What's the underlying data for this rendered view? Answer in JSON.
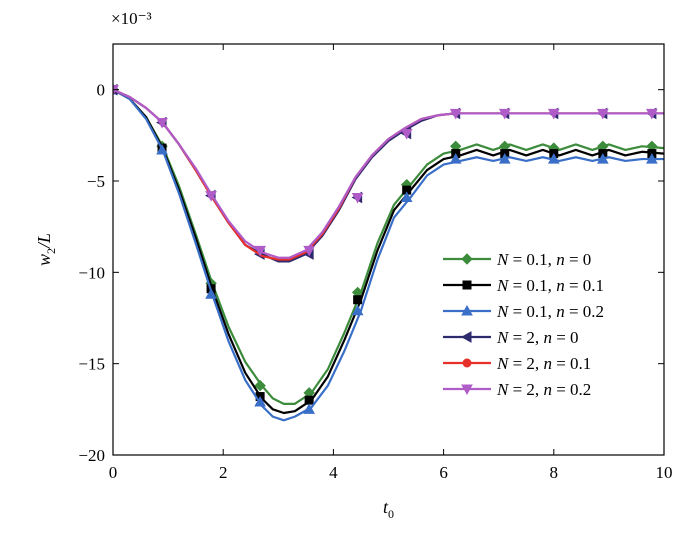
{
  "chart_data": {
    "type": "line",
    "title": "",
    "xlabel": "t₀",
    "ylabel": "w₂/L",
    "y_multiplier": "×10⁻³",
    "xlim": [
      0,
      10
    ],
    "ylim": [
      -20,
      2.5
    ],
    "xticks": [
      0,
      2,
      4,
      6,
      8,
      10
    ],
    "xtick_labels": [
      "0",
      "2",
      "4",
      "6",
      "8",
      "10"
    ],
    "yticks": [
      0,
      -5,
      -10,
      -15,
      -20
    ],
    "ytick_labels": [
      "0",
      "−5",
      "−10",
      "−15",
      "−20"
    ],
    "grid": false,
    "legend_position": "center-right",
    "series": [
      {
        "name": "N = 0.1, n = 0",
        "legend_parts": [
          [
            "N",
            true
          ],
          [
            " = 0.1, ",
            false
          ],
          [
            "n",
            true
          ],
          [
            " = 0",
            false
          ]
        ],
        "color": "#3c8c3c",
        "marker": "diamond",
        "x": [
          0,
          0.3,
          0.6,
          0.9,
          1.2,
          1.5,
          1.8,
          2.1,
          2.4,
          2.7,
          2.9,
          3.1,
          3.3,
          3.6,
          3.9,
          4.2,
          4.5,
          4.8,
          5.1,
          5.4,
          5.7,
          6.0,
          6.3,
          6.6,
          6.9,
          7.2,
          7.5,
          7.8,
          8.1,
          8.4,
          8.7,
          9.0,
          9.3,
          9.6,
          10.0
        ],
        "y": [
          0,
          -0.5,
          -1.5,
          -3.1,
          -5.3,
          -7.9,
          -10.6,
          -13.0,
          -14.9,
          -16.2,
          -16.9,
          -17.2,
          -17.2,
          -16.6,
          -15.3,
          -13.3,
          -11.1,
          -8.4,
          -6.3,
          -5.2,
          -4.1,
          -3.5,
          -3.3,
          -3.0,
          -3.3,
          -3.0,
          -3.3,
          -3.0,
          -3.3,
          -3.0,
          -3.3,
          -3.0,
          -3.3,
          -3.1,
          -3.2
        ],
        "marker_x": [
          0,
          0.89,
          1.78,
          2.67,
          3.56,
          4.44,
          5.33,
          6.22,
          7.11,
          8.0,
          8.89,
          9.78
        ],
        "marker_y": [
          0,
          -3.1,
          -10.6,
          -16.2,
          -16.6,
          -11.1,
          -5.2,
          -3.1,
          -3.1,
          -3.2,
          -3.1,
          -3.1
        ]
      },
      {
        "name": "N = 0.1, n = 0.1",
        "legend_parts": [
          [
            "N",
            true
          ],
          [
            " = 0.1, ",
            false
          ],
          [
            "n",
            true
          ],
          [
            " = 0.1",
            false
          ]
        ],
        "color": "#000000",
        "marker": "square",
        "x": [
          0,
          0.3,
          0.6,
          0.9,
          1.2,
          1.5,
          1.8,
          2.1,
          2.4,
          2.7,
          2.9,
          3.1,
          3.3,
          3.6,
          3.9,
          4.2,
          4.5,
          4.8,
          5.1,
          5.4,
          5.7,
          6.0,
          6.3,
          6.6,
          6.9,
          7.2,
          7.5,
          7.8,
          8.1,
          8.4,
          8.7,
          9.0,
          9.3,
          9.6,
          10.0
        ],
        "y": [
          0,
          -0.5,
          -1.5,
          -3.2,
          -5.5,
          -8.1,
          -10.9,
          -13.4,
          -15.5,
          -16.9,
          -17.5,
          -17.7,
          -17.6,
          -17.0,
          -15.7,
          -13.7,
          -11.5,
          -8.8,
          -6.6,
          -5.5,
          -4.4,
          -3.8,
          -3.6,
          -3.3,
          -3.6,
          -3.3,
          -3.6,
          -3.3,
          -3.6,
          -3.3,
          -3.6,
          -3.3,
          -3.6,
          -3.4,
          -3.5
        ],
        "marker_x": [
          0,
          0.89,
          1.78,
          2.67,
          3.56,
          4.44,
          5.33,
          6.22,
          7.11,
          8.0,
          8.89,
          9.78
        ],
        "marker_y": [
          0,
          -3.2,
          -10.9,
          -16.8,
          -17.0,
          -11.5,
          -5.5,
          -3.5,
          -3.5,
          -3.5,
          -3.5,
          -3.5
        ]
      },
      {
        "name": "N = 0.1, n = 0.2",
        "legend_parts": [
          [
            "N",
            true
          ],
          [
            " = 0.1, ",
            false
          ],
          [
            "n",
            true
          ],
          [
            " = 0.2",
            false
          ]
        ],
        "color": "#3a6fc8",
        "marker": "triangle-up",
        "x": [
          0,
          0.3,
          0.6,
          0.9,
          1.2,
          1.5,
          1.8,
          2.1,
          2.4,
          2.7,
          2.9,
          3.1,
          3.3,
          3.6,
          3.9,
          4.2,
          4.5,
          4.8,
          5.1,
          5.4,
          5.7,
          6.0,
          6.3,
          6.6,
          6.9,
          7.2,
          7.5,
          7.8,
          8.1,
          8.4,
          8.7,
          9.0,
          9.3,
          9.6,
          10.0
        ],
        "y": [
          0,
          -0.5,
          -1.6,
          -3.3,
          -5.7,
          -8.4,
          -11.2,
          -13.8,
          -15.9,
          -17.3,
          -17.9,
          -18.1,
          -17.9,
          -17.4,
          -16.2,
          -14.3,
          -12.1,
          -9.3,
          -7.0,
          -5.9,
          -4.7,
          -4.1,
          -3.9,
          -3.7,
          -3.9,
          -3.7,
          -3.9,
          -3.7,
          -3.9,
          -3.7,
          -3.9,
          -3.7,
          -3.9,
          -3.8,
          -3.8
        ],
        "marker_x": [
          0,
          0.89,
          1.78,
          2.67,
          3.56,
          4.44,
          5.33,
          6.22,
          7.11,
          8.0,
          8.89,
          9.78
        ],
        "marker_y": [
          0,
          -3.3,
          -11.2,
          -17.1,
          -17.5,
          -12.1,
          -5.9,
          -3.8,
          -3.8,
          -3.8,
          -3.8,
          -3.8
        ]
      },
      {
        "name": "N = 2, n = 0",
        "legend_parts": [
          [
            "N",
            true
          ],
          [
            " = 2, ",
            false
          ],
          [
            "n",
            true
          ],
          [
            " = 0",
            false
          ]
        ],
        "color": "#2e2a6e",
        "marker": "triangle-left",
        "x": [
          0,
          0.3,
          0.6,
          0.9,
          1.2,
          1.5,
          1.8,
          2.1,
          2.4,
          2.7,
          3.0,
          3.2,
          3.5,
          3.8,
          4.1,
          4.4,
          4.7,
          5.0,
          5.3,
          5.6,
          5.9,
          6.2,
          6.5,
          7.0,
          7.5,
          8.0,
          8.5,
          9.0,
          9.5,
          10.0
        ],
        "y": [
          0,
          -0.4,
          -1.0,
          -1.8,
          -3.0,
          -4.4,
          -5.9,
          -7.3,
          -8.5,
          -9.0,
          -9.4,
          -9.4,
          -9.0,
          -8.0,
          -6.6,
          -4.9,
          -3.7,
          -2.8,
          -2.2,
          -1.7,
          -1.4,
          -1.3,
          -1.3,
          -1.3,
          -1.3,
          -1.3,
          -1.3,
          -1.3,
          -1.3,
          -1.3
        ],
        "marker_x": [
          0,
          0.89,
          1.78,
          2.67,
          3.56,
          4.44,
          5.33,
          6.22,
          7.11,
          8.0,
          8.89,
          9.78
        ],
        "marker_y": [
          0,
          -1.8,
          -5.8,
          -9.0,
          -9.0,
          -5.9,
          -2.4,
          -1.3,
          -1.3,
          -1.3,
          -1.3,
          -1.3
        ]
      },
      {
        "name": "N = 2, n = 0.1",
        "legend_parts": [
          [
            "N",
            true
          ],
          [
            " = 2, ",
            false
          ],
          [
            "n",
            true
          ],
          [
            " = 0.1",
            false
          ]
        ],
        "color": "#e8302a",
        "marker": "circle",
        "x": [
          0,
          0.3,
          0.6,
          0.9,
          1.2,
          1.5,
          1.8,
          2.1,
          2.4,
          2.7,
          3.0,
          3.2,
          3.5,
          3.8,
          4.1,
          4.4,
          4.7,
          5.0,
          5.3,
          5.6,
          5.9,
          6.2,
          6.5,
          7.0,
          7.5,
          8.0,
          8.5,
          9.0,
          9.5,
          10.0
        ],
        "y": [
          0,
          -0.4,
          -1.0,
          -1.8,
          -3.0,
          -4.4,
          -5.9,
          -7.3,
          -8.5,
          -9.1,
          -9.3,
          -9.3,
          -8.9,
          -7.9,
          -6.5,
          -4.8,
          -3.6,
          -2.7,
          -2.1,
          -1.6,
          -1.4,
          -1.3,
          -1.3,
          -1.3,
          -1.3,
          -1.3,
          -1.3,
          -1.3,
          -1.3,
          -1.3
        ],
        "marker_x": [],
        "marker_y": []
      },
      {
        "name": "N = 2, n = 0.2",
        "legend_parts": [
          [
            "N",
            true
          ],
          [
            " = 2, ",
            false
          ],
          [
            "n",
            true
          ],
          [
            " = 0.2",
            false
          ]
        ],
        "color": "#b05cc8",
        "marker": "triangle-down",
        "x": [
          0,
          0.3,
          0.6,
          0.9,
          1.2,
          1.5,
          1.8,
          2.1,
          2.4,
          2.7,
          3.0,
          3.2,
          3.5,
          3.8,
          4.1,
          4.4,
          4.7,
          5.0,
          5.3,
          5.6,
          5.9,
          6.2,
          6.5,
          7.0,
          7.5,
          8.0,
          8.5,
          9.0,
          9.5,
          10.0
        ],
        "y": [
          0,
          -0.4,
          -1.0,
          -1.8,
          -3.0,
          -4.3,
          -5.8,
          -7.2,
          -8.3,
          -8.9,
          -9.2,
          -9.2,
          -8.8,
          -7.8,
          -6.4,
          -4.8,
          -3.6,
          -2.7,
          -2.1,
          -1.6,
          -1.4,
          -1.3,
          -1.3,
          -1.3,
          -1.3,
          -1.3,
          -1.3,
          -1.3,
          -1.3,
          -1.3
        ],
        "marker_x": [
          0,
          0.89,
          1.78,
          2.67,
          3.56,
          4.44,
          5.33,
          6.22,
          7.11,
          8.0,
          8.89,
          9.78
        ],
        "marker_y": [
          0,
          -1.8,
          -5.8,
          -8.8,
          -8.8,
          -5.9,
          -2.4,
          -1.3,
          -1.3,
          -1.3,
          -1.3,
          -1.3
        ]
      }
    ]
  }
}
